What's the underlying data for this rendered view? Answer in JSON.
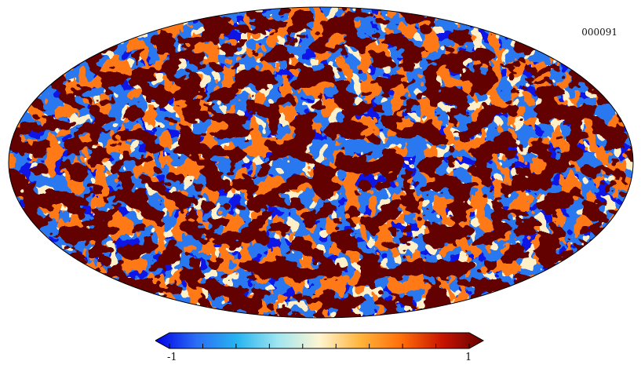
{
  "map": {
    "label": "000091",
    "projection": "mollweide"
  },
  "colorbar": {
    "min_label": "-1",
    "max_label": "1",
    "range": [
      -1,
      1
    ],
    "colors": [
      "#0000e6",
      "#2a6ef5",
      "#28b4f0",
      "#a0e6f0",
      "#fff5d2",
      "#ffb43c",
      "#ff6e0a",
      "#c81400",
      "#640000"
    ]
  }
}
